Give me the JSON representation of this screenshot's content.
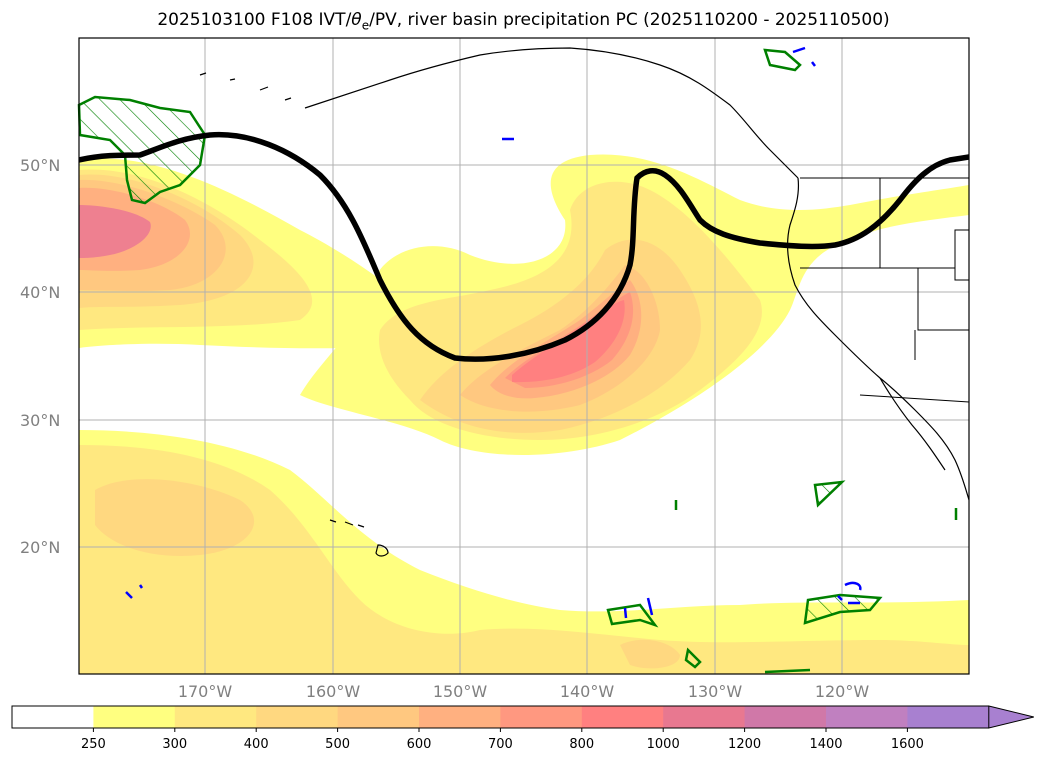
{
  "title": {
    "prefix": "2025103100 F108 IVT/",
    "theta": "θ",
    "theta_sub": "e",
    "suffix": "/PV, river basin precipitation PC (2025110200 - 2025110500)"
  },
  "map": {
    "lat_labels": [
      "50°N",
      "40°N",
      "30°N",
      "20°N"
    ],
    "lon_labels": [
      "170°W",
      "160°W",
      "150°W",
      "140°W",
      "130°W",
      "120°W"
    ],
    "lat_values": [
      50,
      40,
      30,
      20
    ],
    "lon_values": [
      -170,
      -160,
      -150,
      -140,
      -130,
      -120
    ]
  },
  "colorbar": {
    "levels": [
      "250",
      "300",
      "400",
      "500",
      "600",
      "700",
      "800",
      "1000",
      "1200",
      "1400",
      "1600"
    ],
    "colors": [
      "#ffffff",
      "#ffff80",
      "#ffe880",
      "#ffd880",
      "#ffc880",
      "#ffb080",
      "#ff9880",
      "#ff8080",
      "#e87890",
      "#d078a8",
      "#c080c0",
      "#a880d0"
    ]
  },
  "colors": {
    "pv_contour": "#000000",
    "precip_outline": "#008000",
    "theta_e": "#0000ff",
    "grid": "#b0b0b0"
  }
}
